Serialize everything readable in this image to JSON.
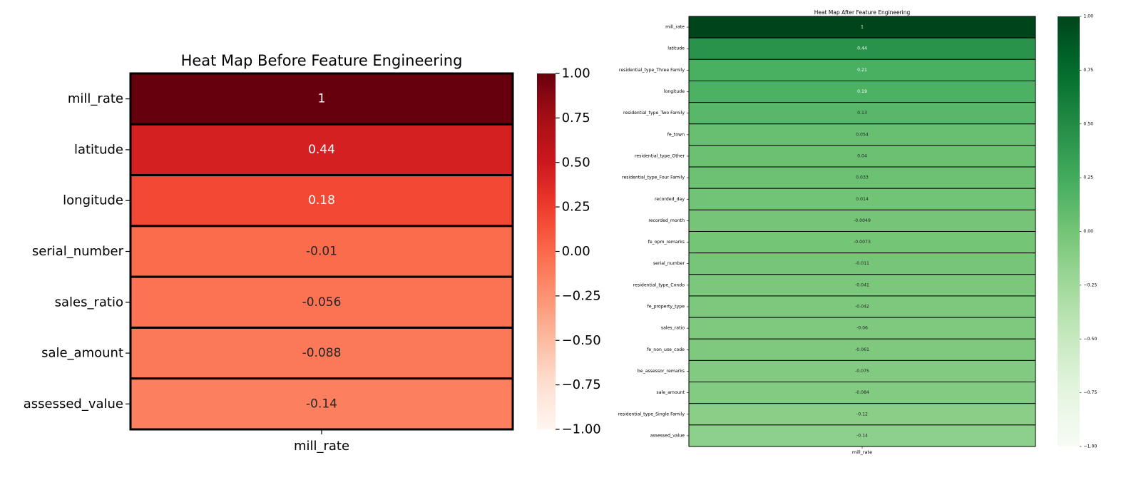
{
  "chart_data": [
    {
      "type": "heatmap",
      "title": "Heat Map Before Feature Engineering",
      "x_categories": [
        "mill_rate"
      ],
      "y_categories": [
        "mill_rate",
        "latitude",
        "longitude",
        "serial_number",
        "sales_ratio",
        "sale_amount",
        "assessed_value"
      ],
      "values": [
        1,
        0.44,
        0.18,
        -0.01,
        -0.056,
        -0.088,
        -0.14
      ],
      "value_labels": [
        "1",
        "0.44",
        "0.18",
        "-0.01",
        "-0.056",
        "-0.088",
        "-0.14"
      ],
      "colormap": "Reds",
      "colorbar": {
        "range": [
          -1,
          1
        ],
        "ticks": [
          1,
          0.75,
          0.5,
          0.25,
          0,
          -0.25,
          -0.5,
          -0.75,
          -1
        ],
        "tick_labels": [
          "1.00",
          "0.75",
          "0.50",
          "0.25",
          "0.00",
          "−0.25",
          "−0.50",
          "−0.75",
          "−1.00"
        ]
      },
      "grid": true,
      "colors": {
        "low": "#fff5f0",
        "high": "#67000d",
        "cell_border": "#000000"
      }
    },
    {
      "type": "heatmap",
      "title": "Heat Map After Feature Engineering",
      "x_categories": [
        "mill_rate"
      ],
      "y_categories": [
        "mill_rate",
        "latitude",
        "residential_type_Three Family",
        "longitude",
        "residential_type_Two Family",
        "fe_town",
        "residential_type_Other",
        "residential_type_Four Family",
        "recorded_day",
        "recorded_month",
        "fe_opm_remarks",
        "serial_number",
        "residential_type_Condo",
        "fe_property_type",
        "sales_ratio",
        "fe_non_use_code",
        "be_assessor_remarks",
        "sale_amount",
        "residential_type_Single Family",
        "assessed_value"
      ],
      "values": [
        1,
        0.44,
        0.21,
        0.19,
        0.13,
        0.054,
        0.04,
        0.033,
        0.014,
        -0.0049,
        -0.0073,
        -0.011,
        -0.041,
        -0.042,
        -0.06,
        -0.061,
        -0.075,
        -0.084,
        -0.12,
        -0.14
      ],
      "value_labels": [
        "1",
        "0.44",
        "0.21",
        "0.19",
        "0.13",
        "0.054",
        "0.04",
        "0.033",
        "0.014",
        "-0.0049",
        "-0.0073",
        "-0.011",
        "-0.041",
        "-0.042",
        "-0.06",
        "-0.061",
        "-0.075",
        "-0.084",
        "-0.12",
        "-0.14"
      ],
      "colormap": "Greens",
      "colorbar": {
        "range": [
          -1,
          1
        ],
        "ticks": [
          1,
          0.75,
          0.5,
          0.25,
          0,
          -0.25,
          -0.5,
          -0.75,
          -1
        ],
        "tick_labels": [
          "1.00",
          "0.75",
          "0.50",
          "0.25",
          "0.00",
          "−0.25",
          "−0.50",
          "−0.75",
          "−1.00"
        ]
      },
      "grid": true,
      "colors": {
        "low": "#f7fcf5",
        "high": "#00441b",
        "cell_border": "#000000"
      }
    }
  ]
}
